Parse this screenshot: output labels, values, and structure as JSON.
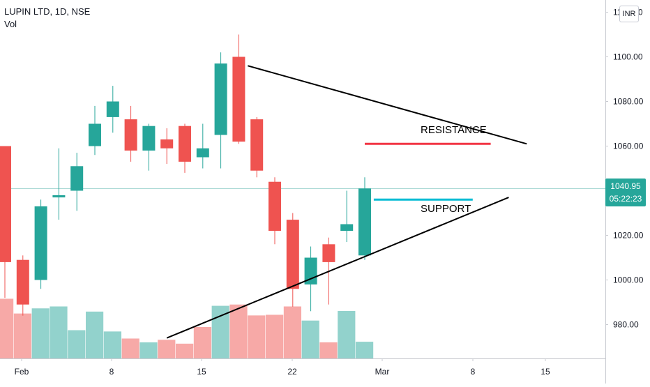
{
  "symbol": {
    "title": "LUPIN LTD, 1D, NSE",
    "volume_label": "Vol",
    "currency": "INR"
  },
  "last_price": {
    "price": "1040.95",
    "countdown": "05:22:23"
  },
  "annotations": {
    "resistance": "RESISTANCE",
    "support": "SUPPORT"
  },
  "colors": {
    "up": "#26a69a",
    "down": "#ef5350",
    "up_volume": "#92d2cc",
    "down_volume": "#f7a9a7",
    "resistance_line": "#f23645",
    "support_line": "#00bcd4",
    "trendline": "#000000"
  },
  "chart_data": {
    "type": "candlestick",
    "title": "LUPIN LTD, 1D, NSE",
    "x_ticks": [
      "Feb",
      "8",
      "15",
      "22",
      "Mar",
      "8",
      "15"
    ],
    "y_ticks": [
      "980.00",
      "1000.00",
      "1020.00",
      "1040.00",
      "1060.00",
      "1080.00",
      "1100.00",
      "1120.00"
    ],
    "ylim": [
      965,
      1124
    ],
    "candles": [
      {
        "open": 1060,
        "high": 1060,
        "low": 992,
        "close": 1008
      },
      {
        "open": 1009,
        "high": 1011,
        "low": 984,
        "close": 989
      },
      {
        "open": 1000,
        "high": 1036,
        "low": 996,
        "close": 1033
      },
      {
        "open": 1037,
        "high": 1059,
        "low": 1027,
        "close": 1038
      },
      {
        "open": 1040,
        "high": 1057,
        "low": 1031,
        "close": 1051
      },
      {
        "open": 1060,
        "high": 1078,
        "low": 1056,
        "close": 1070
      },
      {
        "open": 1073,
        "high": 1087,
        "low": 1066,
        "close": 1080
      },
      {
        "open": 1072,
        "high": 1078,
        "low": 1053,
        "close": 1058
      },
      {
        "open": 1058,
        "high": 1070,
        "low": 1049,
        "close": 1069
      },
      {
        "open": 1063,
        "high": 1068,
        "low": 1052,
        "close": 1059
      },
      {
        "open": 1069,
        "high": 1070,
        "low": 1048,
        "close": 1053
      },
      {
        "open": 1055,
        "high": 1070,
        "low": 1050,
        "close": 1059
      },
      {
        "open": 1065,
        "high": 1102,
        "low": 1050,
        "close": 1097
      },
      {
        "open": 1100,
        "high": 1110,
        "low": 1061,
        "close": 1062
      },
      {
        "open": 1072,
        "high": 1073,
        "low": 1046,
        "close": 1049
      },
      {
        "open": 1044,
        "high": 1046,
        "low": 1016,
        "close": 1022
      },
      {
        "open": 1027,
        "high": 1030,
        "low": 988,
        "close": 996
      },
      {
        "open": 998,
        "high": 1015,
        "low": 986,
        "close": 1010
      },
      {
        "open": 1016,
        "high": 1019,
        "low": 989,
        "close": 1008
      },
      {
        "open": 1022,
        "high": 1040,
        "low": 1017,
        "close": 1025
      },
      {
        "open": 1011,
        "high": 1046,
        "low": 1009,
        "close": 1041
      }
    ],
    "volume_trend": [
      "down",
      "down",
      "up",
      "up",
      "up",
      "up",
      "up",
      "down",
      "up",
      "down",
      "down",
      "down",
      "up",
      "down",
      "down",
      "down",
      "down",
      "up",
      "down",
      "up",
      "up"
    ],
    "volume_relative": [
      0.93,
      0.7,
      0.78,
      0.81,
      0.44,
      0.73,
      0.42,
      0.31,
      0.25,
      0.29,
      0.23,
      0.49,
      0.82,
      0.84,
      0.67,
      0.68,
      0.81,
      0.59,
      0.25,
      0.74,
      0.26
    ],
    "last_price": 1040.95,
    "annotations": [
      {
        "kind": "trendline",
        "label": "",
        "from": {
          "bar": 13.5,
          "price": 1096
        },
        "to": {
          "bar": 29.0,
          "price": 1061
        }
      },
      {
        "kind": "trendline",
        "label": "",
        "from": {
          "bar": 9.0,
          "price": 974
        },
        "to": {
          "bar": 28.0,
          "price": 1037
        }
      },
      {
        "kind": "level",
        "label": "RESISTANCE",
        "from": {
          "bar": 20.0,
          "price": 1061
        },
        "to": {
          "bar": 27.0,
          "price": 1061
        }
      },
      {
        "kind": "level",
        "label": "SUPPORT",
        "from": {
          "bar": 20.5,
          "price": 1036
        },
        "to": {
          "bar": 26.0,
          "price": 1036
        }
      }
    ]
  }
}
